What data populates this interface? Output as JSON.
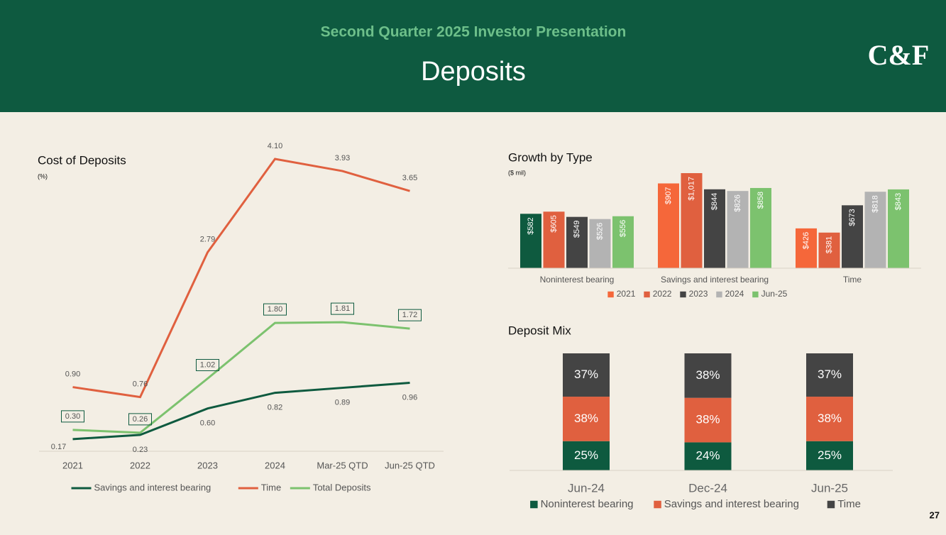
{
  "header": {
    "subtitle": "Second Quarter 2025 Investor Presentation",
    "title": "Deposits",
    "logo": "C&F"
  },
  "page_number": "27",
  "chart_data": [
    {
      "type": "line",
      "title": "Cost of Deposits",
      "subtitle": "(%)",
      "categories": [
        "2021",
        "2022",
        "2023",
        "2024",
        "Mar-25 QTD",
        "Jun-25 QTD"
      ],
      "series": [
        {
          "name": "Savings and interest bearing",
          "color": "#0e5a3f",
          "values": [
            0.17,
            0.23,
            0.6,
            0.82,
            0.89,
            0.96
          ],
          "value_labels": [
            "0.17",
            "0.23",
            "0.60",
            "0.82",
            "0.89",
            "0.96"
          ]
        },
        {
          "name": "Time",
          "color": "#e0603f",
          "values": [
            0.9,
            0.76,
            2.79,
            4.1,
            3.93,
            3.65
          ],
          "value_labels": [
            "0.90",
            "0.76",
            "2.79",
            "4.10",
            "3.93",
            "3.65"
          ]
        },
        {
          "name": "Total Deposits",
          "color": "#7cc26e",
          "values": [
            0.3,
            0.26,
            1.02,
            1.8,
            1.81,
            1.72
          ],
          "value_labels": [
            "0.30",
            "0.26",
            "1.02",
            "1.80",
            "1.81",
            "1.72"
          ]
        }
      ],
      "legend": "bottom"
    },
    {
      "type": "bar",
      "title": "Growth by Type",
      "subtitle": "($ mil)",
      "categories": [
        "Noninterest bearing",
        "Savings and interest bearing",
        "Time"
      ],
      "series": [
        {
          "name": "2021",
          "color": "#f5673a",
          "point_colors": [
            "#0e5a3f",
            "#f5673a",
            "#f5673a"
          ],
          "values": [
            582,
            907,
            426
          ],
          "value_labels": [
            "$582",
            "$907",
            "$426"
          ]
        },
        {
          "name": "2022",
          "color": "#e0603f",
          "values": [
            605,
            1017,
            381
          ],
          "value_labels": [
            "$605",
            "$1,017",
            "$381"
          ]
        },
        {
          "name": "2023",
          "color": "#444444",
          "values": [
            549,
            844,
            673
          ],
          "value_labels": [
            "$549",
            "$844",
            "$673"
          ]
        },
        {
          "name": "2024",
          "color": "#b3b3b3",
          "values": [
            526,
            826,
            818
          ],
          "value_labels": [
            "$526",
            "$826",
            "$818"
          ]
        },
        {
          "name": "Jun-25",
          "color": "#7cc26e",
          "values": [
            556,
            858,
            843
          ],
          "value_labels": [
            "$556",
            "$858",
            "$843"
          ]
        }
      ],
      "legend": "bottom"
    },
    {
      "type": "stacked_bar",
      "title": "Deposit Mix",
      "categories": [
        "Jun-24",
        "Dec-24",
        "Jun-25"
      ],
      "series": [
        {
          "name": "Noninterest bearing",
          "color": "#0e5a3f",
          "values": [
            25,
            24,
            25
          ],
          "value_labels": [
            "25%",
            "24%",
            "25%"
          ]
        },
        {
          "name": "Savings and interest bearing",
          "color": "#e0603f",
          "values": [
            38,
            38,
            38
          ],
          "value_labels": [
            "38%",
            "38%",
            "38%"
          ]
        },
        {
          "name": "Time",
          "color": "#444444",
          "values": [
            37,
            38,
            37
          ],
          "value_labels": [
            "37%",
            "38%",
            "37%"
          ]
        }
      ],
      "legend": "bottom"
    }
  ]
}
